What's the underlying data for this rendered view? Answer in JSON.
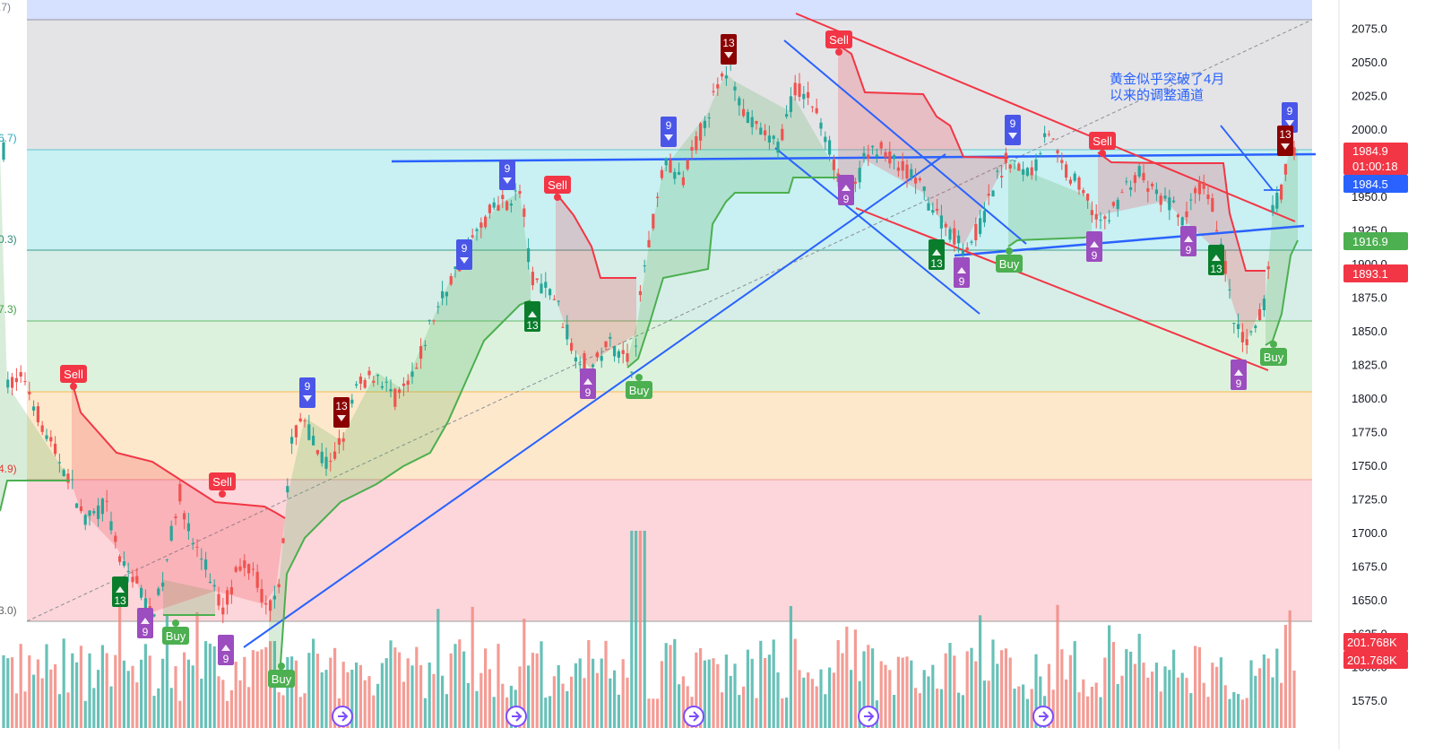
{
  "chart_data": {
    "type": "candlestick",
    "annotation": "黄金似乎突破了4月\n以来的调整通道",
    "y_axis": {
      "ticks": [
        2075.0,
        2050.0,
        2025.0,
        2000.0,
        1975.0,
        1950.0,
        1925.0,
        1900.0,
        1875.0,
        1850.0,
        1825.0,
        1800.0,
        1775.0,
        1750.0,
        1725.0,
        1700.0,
        1675.0,
        1650.0,
        1625.0,
        1600.0,
        1575.0
      ],
      "ylim": [
        1565,
        2085
      ]
    },
    "fib_labels": [
      ".7)",
      "6.7)",
      "0.3)",
      "7.3)",
      "4.9)",
      "3.0)"
    ],
    "price_tags": [
      {
        "text": "1984.9",
        "sub": "01:00:18",
        "price": 1984.9,
        "color": "#f23645"
      },
      {
        "text": "1984.5",
        "price": 1984.5,
        "color": "#2962ff"
      },
      {
        "text": "1916.9",
        "price": 1916.9,
        "color": "#4caf50"
      },
      {
        "text": "1893.1",
        "price": 1893.1,
        "color": "#f23645"
      }
    ],
    "volume_tags": [
      {
        "text": "201.768K",
        "color": "#f23645"
      },
      {
        "text": "201.768K",
        "color": "#f23645"
      }
    ],
    "signals": [
      {
        "text": "Sell",
        "kind": "sell"
      },
      {
        "text": "Sell",
        "kind": "sell"
      },
      {
        "text": "Sell",
        "kind": "sell"
      },
      {
        "text": "Sell",
        "kind": "sell"
      },
      {
        "text": "Sell",
        "kind": "sell"
      },
      {
        "text": "Buy",
        "kind": "buy"
      },
      {
        "text": "Buy",
        "kind": "buy"
      },
      {
        "text": "Buy",
        "kind": "buy"
      },
      {
        "text": "Buy",
        "kind": "buy"
      },
      {
        "text": "Buy",
        "kind": "buy"
      }
    ],
    "td_counts": [
      {
        "text": "9",
        "kind": "blue"
      },
      {
        "text": "9",
        "kind": "blue"
      },
      {
        "text": "9",
        "kind": "blue"
      },
      {
        "text": "9",
        "kind": "blue"
      },
      {
        "text": "9",
        "kind": "blue"
      },
      {
        "text": "9",
        "kind": "blue"
      },
      {
        "text": "9",
        "kind": "purple"
      },
      {
        "text": "9",
        "kind": "purple"
      },
      {
        "text": "9",
        "kind": "purple"
      },
      {
        "text": "9",
        "kind": "purple"
      },
      {
        "text": "9",
        "kind": "purple"
      },
      {
        "text": "9",
        "kind": "purple"
      },
      {
        "text": "9",
        "kind": "purple"
      },
      {
        "text": "9",
        "kind": "purple"
      },
      {
        "text": "13",
        "kind": "darkred"
      },
      {
        "text": "13",
        "kind": "darkred"
      },
      {
        "text": "13",
        "kind": "darkred"
      },
      {
        "text": "13",
        "kind": "green"
      },
      {
        "text": "13",
        "kind": "green"
      },
      {
        "text": "13",
        "kind": "green"
      },
      {
        "text": "13",
        "kind": "green"
      }
    ],
    "colors": {
      "up": "#26a69a",
      "down": "#ef5350",
      "trend_blue": "#2962ff",
      "channel_red": "#f23645",
      "supertrend_green": "#4caf50",
      "supertrend_red": "#f23645"
    },
    "grid": false
  }
}
